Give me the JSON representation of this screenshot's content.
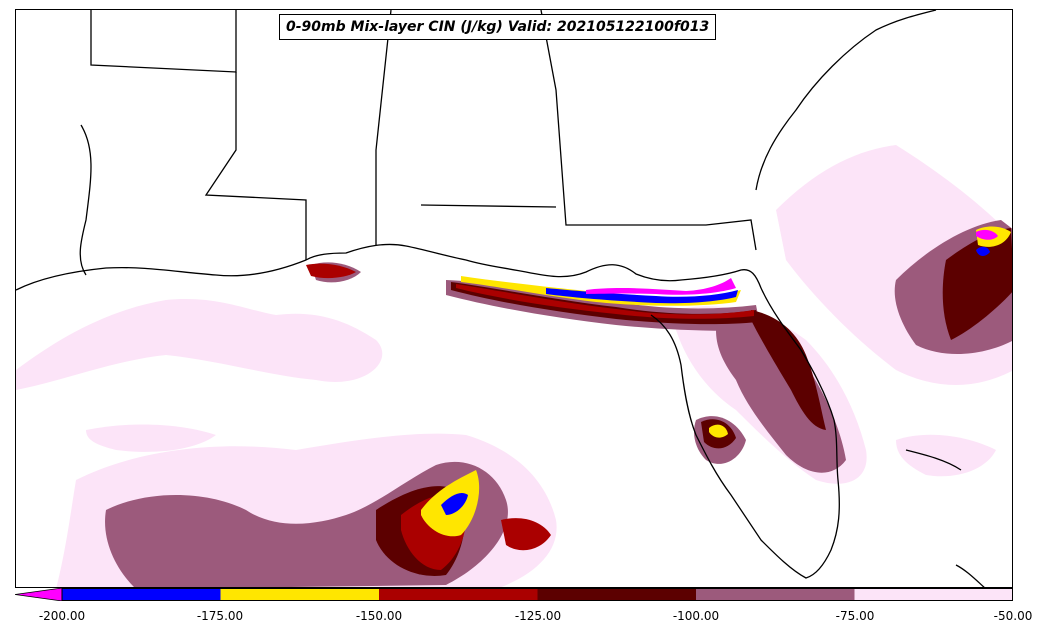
{
  "title": "0-90mb Mix-layer CIN (J/kg) Valid: 202105122100f013",
  "colorbar": {
    "ticks": [
      "-200.00",
      "-175.00",
      "-150.00",
      "-125.00",
      "-100.00",
      "-75.00",
      "-50.00"
    ],
    "levels": [
      -200,
      -175,
      -150,
      -125,
      -100,
      -75,
      -50
    ],
    "colors": [
      "#0000ff",
      "#ffe600",
      "#aa0000",
      "#5c0000",
      "#9c5a7c",
      "#fce4f8"
    ],
    "extend_color": "#ff00ff"
  },
  "palette": {
    "lt_pink": "#fce4f8",
    "mauve": "#9c5a7c",
    "dark_red": "#5c0000",
    "red": "#aa0000",
    "yellow": "#ffe600",
    "blue": "#0000ff",
    "magenta": "#ff00ff"
  }
}
